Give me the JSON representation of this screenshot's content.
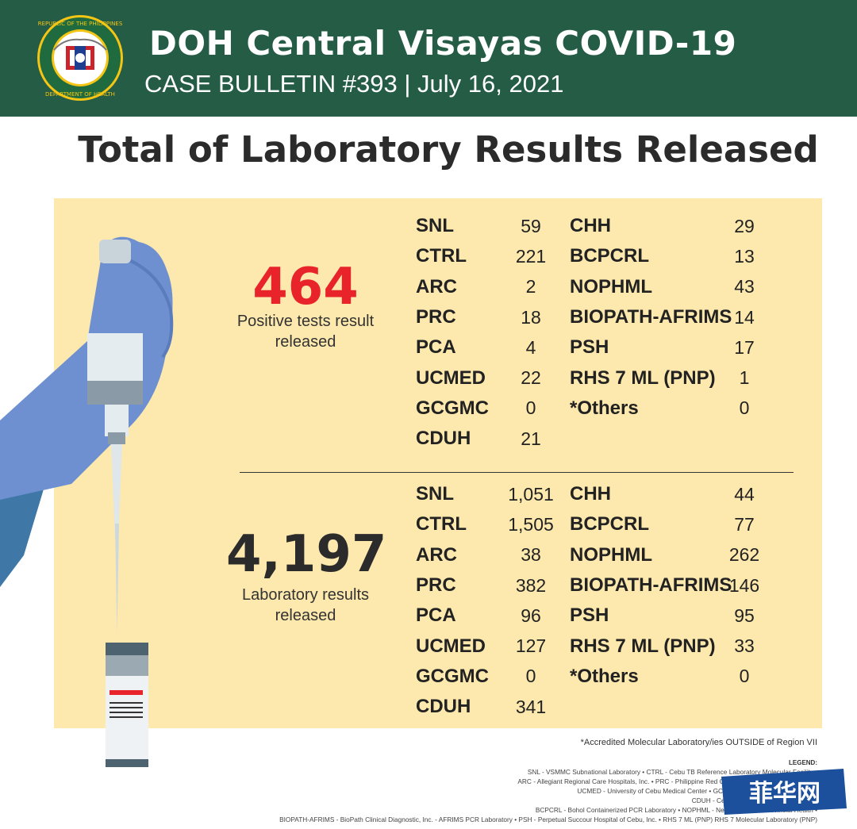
{
  "header": {
    "title": "DOH Central Visayas COVID-19",
    "subtitle": "CASE BULLETIN #393 | July 16, 2021",
    "seal_text_top": "REPUBLIC OF THE PHILIPPINES",
    "seal_text_bottom": "DEPARTMENT OF HEALTH",
    "brand_color": "#245c46"
  },
  "main_title": "Total of Laboratory Results Released",
  "positive": {
    "total": "464",
    "caption_line1": "Positive tests result",
    "caption_line2": "released",
    "left": [
      {
        "lab": "SNL",
        "val": "59"
      },
      {
        "lab": "CTRL",
        "val": "221"
      },
      {
        "lab": "ARC",
        "val": "2"
      },
      {
        "lab": "PRC",
        "val": "18"
      },
      {
        "lab": "PCA",
        "val": "4"
      },
      {
        "lab": "UCMED",
        "val": "22"
      },
      {
        "lab": "GCGMC",
        "val": "0"
      },
      {
        "lab": "CDUH",
        "val": "21"
      }
    ],
    "right": [
      {
        "lab": "CHH",
        "val": "29"
      },
      {
        "lab": "BCPCRL",
        "val": "13"
      },
      {
        "lab": "NOPHML",
        "val": "43"
      },
      {
        "lab": "BIOPATH-AFRIMS",
        "val": "14"
      },
      {
        "lab": "PSH",
        "val": "17"
      },
      {
        "lab": "RHS 7 ML (PNP)",
        "val": "1"
      },
      {
        "lab": "*Others",
        "val": "0"
      }
    ]
  },
  "released": {
    "total": "4,197",
    "caption_line1": "Laboratory results",
    "caption_line2": "released",
    "left": [
      {
        "lab": "SNL",
        "val": "1,051"
      },
      {
        "lab": "CTRL",
        "val": "1,505"
      },
      {
        "lab": "ARC",
        "val": "38"
      },
      {
        "lab": "PRC",
        "val": "382"
      },
      {
        "lab": "PCA",
        "val": "96"
      },
      {
        "lab": "UCMED",
        "val": "127"
      },
      {
        "lab": "GCGMC",
        "val": "0"
      },
      {
        "lab": "CDUH",
        "val": "341"
      }
    ],
    "right": [
      {
        "lab": "CHH",
        "val": "44"
      },
      {
        "lab": "BCPCRL",
        "val": "77"
      },
      {
        "lab": "NOPHML",
        "val": "262"
      },
      {
        "lab": "BIOPATH-AFRIMS",
        "val": "146"
      },
      {
        "lab": "PSH",
        "val": "95"
      },
      {
        "lab": "RHS 7 ML (PNP)",
        "val": "33"
      },
      {
        "lab": "*Others",
        "val": "0"
      }
    ]
  },
  "footnote": "*Accredited Molecular Laboratory/ies OUTSIDE of Region VII",
  "legend": {
    "title": "LEGEND:",
    "lines": [
      "SNL - VSMMC Subnational Laboratory • CTRL - Cebu TB Reference Laboratory Molecular Facility •",
      "ARC - Allegiant Regional Care Hospitals, Inc. • PRC - Philippine Red Cross • PCA - Prime Care Alpha •",
      "UCMED - University of Cebu Medical Center • GCGMH - Gov. Celestino Gallares •",
      "CDUH - Cebu Doctors University Hospital •",
      "BCPCRL - Bohol Containerized PCR Laboratory • NOPHML - Negros Oriental Provincial Health •",
      "BIOPATH-AFRIMS - BioPath Clinical Diagnostic, Inc. - AFRIMS PCR Laboratory • PSH - Perpetual Succour Hospital of Cebu, Inc. • RHS 7 ML (PNP) RHS 7 Molecular Laboratory (PNP)"
    ]
  },
  "watermark": "菲华网",
  "colors": {
    "positive": "#e8232a",
    "panel": "#fde8ad",
    "glove": "#6e90d0"
  }
}
